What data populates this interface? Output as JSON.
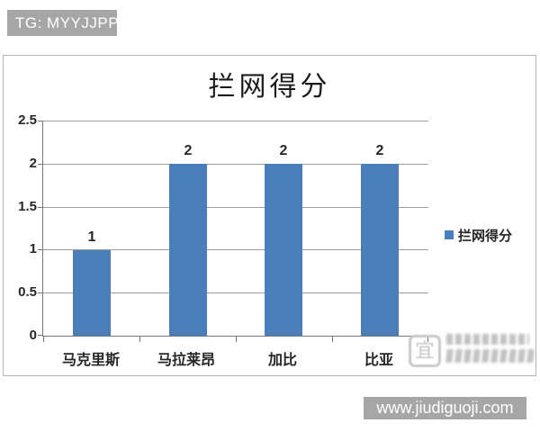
{
  "header": {
    "tg_banner": "TG: MYYJJPP"
  },
  "footer": {
    "site_banner": "www.jiudiguoji.com"
  },
  "chart_data": {
    "type": "bar",
    "title": "拦网得分",
    "categories": [
      "马克里斯",
      "马拉莱昂",
      "加比",
      "比亚"
    ],
    "values": [
      1,
      2,
      2,
      2
    ],
    "data_labels": [
      "1",
      "2",
      "2",
      "2"
    ],
    "series": [
      {
        "name": "拦网得分",
        "values": [
          1,
          2,
          2,
          2
        ]
      }
    ],
    "ylim": [
      0,
      2.5
    ],
    "ytick_step": 0.5,
    "yticks_top_to_bottom": [
      "2.5",
      "2",
      "1.5",
      "1",
      "0.5",
      "0"
    ],
    "xlabel": "",
    "ylabel": "",
    "grid": true,
    "legend": {
      "entries": [
        "拦网得分"
      ],
      "position": "right"
    },
    "bar_color": "#4A7EBB"
  },
  "watermark": {
    "glyph": "宜"
  },
  "colors": {
    "bar": "#4A7EBB",
    "banner_bg": "#A6A6A6",
    "banner_text": "#FFFFFF",
    "gridline": "#9C9C9C",
    "axis": "#767676",
    "frame_border": "#B3B3B3",
    "text": "#262626"
  }
}
